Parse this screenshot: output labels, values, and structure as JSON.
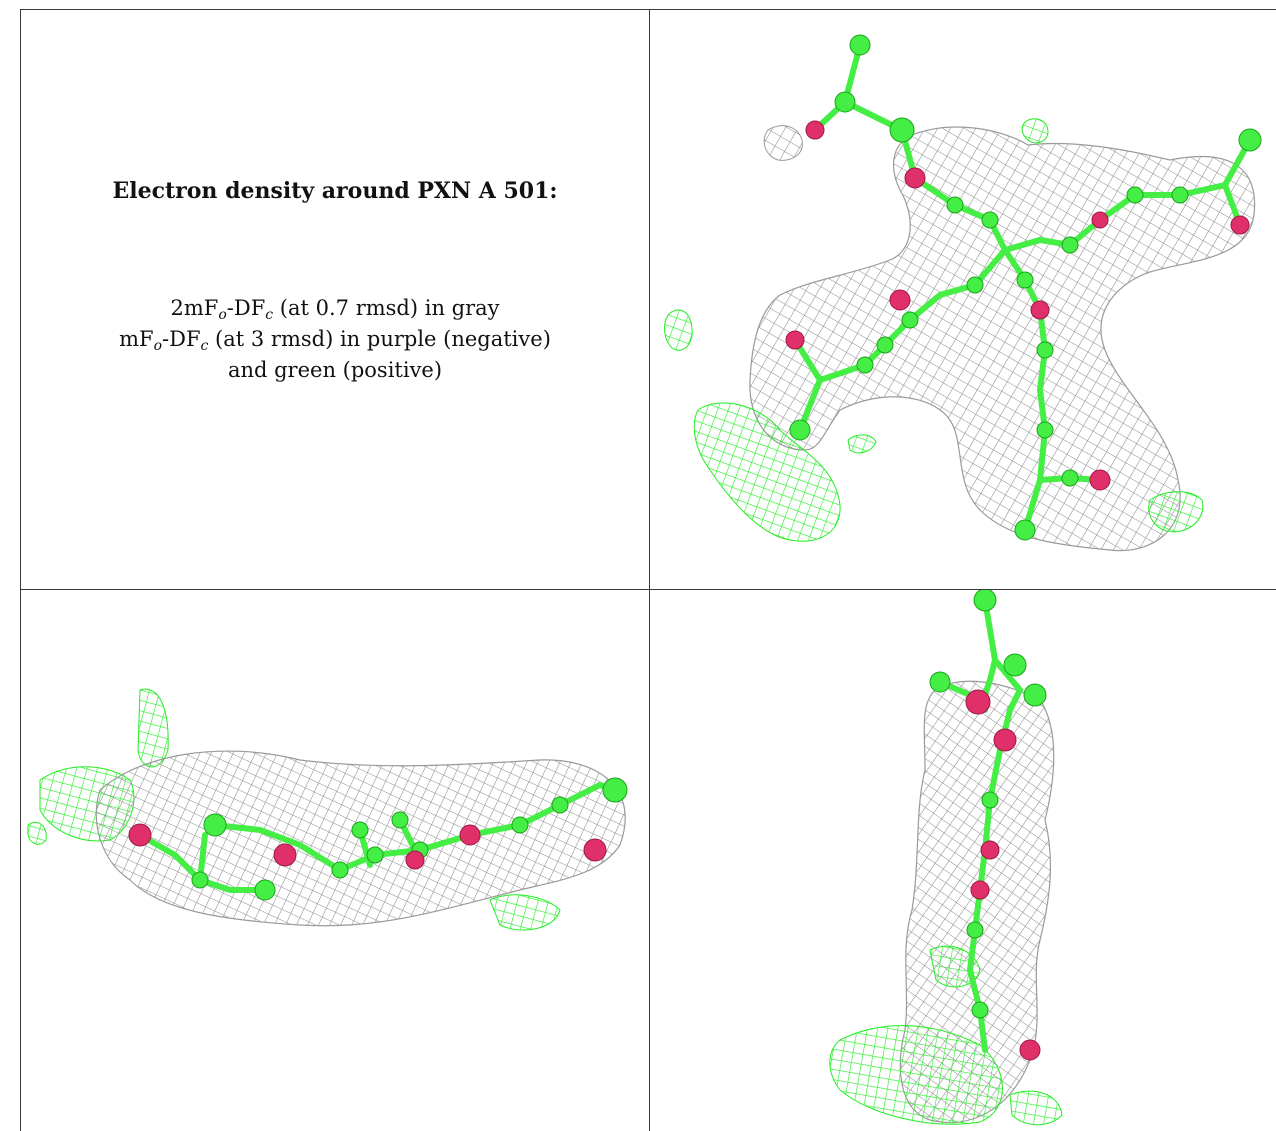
{
  "caption": {
    "heading": "Electron density around PXN A 501:",
    "line1": {
      "p1": "2mF",
      "s1": "o",
      "p2": "-DF",
      "s2": "c",
      "p3": " (at 0.7 rmsd) in gray"
    },
    "line2": {
      "p1": "mF",
      "s1": "o",
      "p2": "-DF",
      "s2": "c",
      "p3": " (at 3 rmsd) in purple (negative)"
    },
    "line3": "and green (positive)"
  },
  "colors": {
    "mesh_2fofc": "#9a9a9a",
    "mesh_positive": "#22ee22",
    "carbon_atom": "#44ee44",
    "oxygen_atom": "#e0306a",
    "grid_line": "#3a3a3a"
  },
  "panels": [
    "top-view",
    "side-view",
    "end-view"
  ]
}
